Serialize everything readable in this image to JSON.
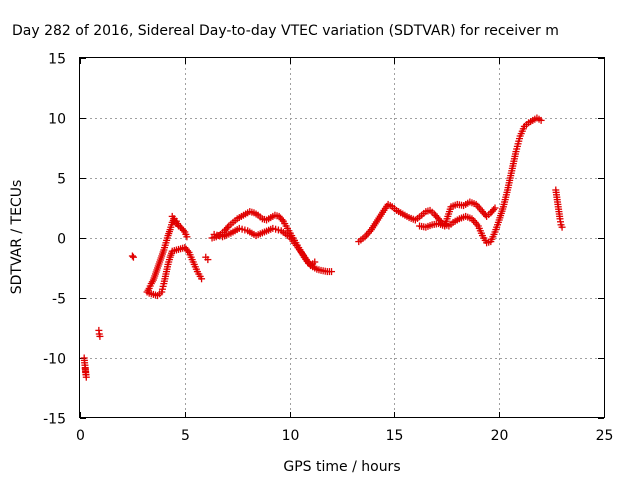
{
  "chart_data": {
    "type": "scatter",
    "title": "Day 282 of 2016, Sidereal Day-to-day VTEC variation (SDTVAR) for receiver m",
    "xlabel": "GPS time / hours",
    "ylabel": "SDTVAR / TECUs",
    "xlim": [
      0,
      25
    ],
    "ylim": [
      -15,
      15
    ],
    "x_ticks": [
      "0",
      "5",
      "10",
      "15",
      "20",
      "25"
    ],
    "y_ticks": [
      "-15",
      "-10",
      "-5",
      "0",
      "5",
      "10",
      "15"
    ],
    "grid": true,
    "marker": "plus",
    "color": "#e00000",
    "segments": [
      [
        [
          0.2,
          -10.0
        ],
        [
          0.22,
          -10.4
        ],
        [
          0.25,
          -10.8
        ],
        [
          0.27,
          -11.2
        ],
        [
          0.3,
          -11.6
        ],
        [
          0.25,
          -10.9
        ]
      ],
      [
        [
          0.9,
          -7.7
        ],
        [
          0.92,
          -8.0
        ],
        [
          0.95,
          -8.2
        ]
      ],
      [
        [
          2.5,
          -1.5
        ],
        [
          2.55,
          -1.6
        ]
      ],
      [
        [
          3.2,
          -4.5
        ],
        [
          3.3,
          -4.2
        ],
        [
          3.4,
          -3.8
        ],
        [
          3.5,
          -3.5
        ],
        [
          3.6,
          -3.0
        ],
        [
          3.7,
          -2.5
        ],
        [
          3.8,
          -2.0
        ],
        [
          3.9,
          -1.5
        ],
        [
          4.0,
          -1.0
        ],
        [
          4.1,
          -0.4
        ],
        [
          4.2,
          0.2
        ],
        [
          4.3,
          0.7
        ],
        [
          4.4,
          1.3
        ],
        [
          4.5,
          1.6
        ],
        [
          4.6,
          1.4
        ],
        [
          4.7,
          1.0
        ]
      ],
      [
        [
          3.3,
          -4.6
        ],
        [
          3.5,
          -4.7
        ],
        [
          3.7,
          -4.8
        ],
        [
          3.9,
          -4.5
        ],
        [
          4.0,
          -3.8
        ],
        [
          4.1,
          -3.0
        ],
        [
          4.2,
          -2.2
        ],
        [
          4.3,
          -1.6
        ],
        [
          4.4,
          -1.1
        ],
        [
          4.6,
          -1.0
        ],
        [
          4.8,
          -0.9
        ],
        [
          5.0,
          -0.8
        ],
        [
          5.2,
          -1.2
        ],
        [
          5.4,
          -2.0
        ],
        [
          5.6,
          -2.8
        ],
        [
          5.8,
          -3.4
        ]
      ],
      [
        [
          4.4,
          1.8
        ],
        [
          4.6,
          1.2
        ],
        [
          4.8,
          0.9
        ],
        [
          5.0,
          0.5
        ],
        [
          5.1,
          0.1
        ]
      ],
      [
        [
          6.0,
          -1.6
        ],
        [
          6.1,
          -1.8
        ]
      ],
      [
        [
          6.3,
          0.0
        ],
        [
          6.5,
          0.1
        ],
        [
          6.7,
          0.3
        ],
        [
          6.9,
          0.6
        ],
        [
          7.1,
          1.0
        ],
        [
          7.3,
          1.3
        ],
        [
          7.5,
          1.6
        ],
        [
          7.7,
          1.8
        ],
        [
          7.9,
          2.0
        ],
        [
          8.1,
          2.2
        ],
        [
          8.3,
          2.1
        ],
        [
          8.5,
          1.9
        ],
        [
          8.7,
          1.6
        ],
        [
          8.9,
          1.5
        ],
        [
          9.1,
          1.7
        ],
        [
          9.3,
          1.9
        ],
        [
          9.5,
          1.8
        ],
        [
          9.7,
          1.4
        ],
        [
          9.9,
          0.8
        ],
        [
          10.1,
          0.2
        ],
        [
          10.3,
          -0.4
        ],
        [
          10.5,
          -1.0
        ],
        [
          10.7,
          -1.6
        ],
        [
          10.9,
          -2.1
        ],
        [
          11.1,
          -2.4
        ],
        [
          11.3,
          -2.6
        ],
        [
          11.5,
          -2.7
        ],
        [
          11.8,
          -2.8
        ],
        [
          12.0,
          -2.8
        ]
      ],
      [
        [
          6.4,
          0.3
        ],
        [
          6.8,
          0.1
        ],
        [
          7.2,
          0.4
        ],
        [
          7.6,
          0.8
        ],
        [
          8.0,
          0.6
        ],
        [
          8.4,
          0.2
        ],
        [
          8.8,
          0.5
        ],
        [
          9.2,
          0.8
        ],
        [
          9.6,
          0.6
        ],
        [
          10.0,
          0.1
        ],
        [
          10.4,
          -0.8
        ],
        [
          10.8,
          -1.8
        ],
        [
          11.0,
          -2.3
        ],
        [
          11.2,
          -2.0
        ]
      ],
      [
        [
          13.3,
          -0.3
        ],
        [
          13.6,
          0.1
        ],
        [
          13.9,
          0.7
        ],
        [
          14.2,
          1.5
        ],
        [
          14.5,
          2.3
        ],
        [
          14.7,
          2.8
        ],
        [
          14.9,
          2.6
        ],
        [
          15.1,
          2.3
        ],
        [
          15.4,
          2.0
        ],
        [
          15.7,
          1.7
        ],
        [
          16.0,
          1.5
        ],
        [
          16.3,
          1.9
        ],
        [
          16.5,
          2.2
        ],
        [
          16.7,
          2.3
        ],
        [
          16.9,
          2.0
        ],
        [
          17.1,
          1.6
        ],
        [
          17.3,
          1.2
        ],
        [
          17.6,
          1.0
        ],
        [
          17.8,
          1.3
        ],
        [
          18.1,
          1.6
        ],
        [
          18.4,
          1.8
        ],
        [
          18.7,
          1.6
        ],
        [
          19.0,
          1.0
        ],
        [
          19.2,
          0.2
        ],
        [
          19.4,
          -0.4
        ],
        [
          19.6,
          -0.3
        ],
        [
          19.8,
          0.5
        ],
        [
          20.0,
          1.5
        ],
        [
          20.2,
          2.6
        ],
        [
          20.4,
          4.0
        ],
        [
          20.6,
          5.6
        ],
        [
          20.8,
          7.2
        ],
        [
          21.0,
          8.5
        ],
        [
          21.2,
          9.3
        ],
        [
          21.4,
          9.6
        ],
        [
          21.6,
          9.8
        ],
        [
          21.8,
          10.0
        ],
        [
          22.0,
          9.8
        ]
      ],
      [
        [
          16.2,
          1.0
        ],
        [
          16.5,
          0.9
        ],
        [
          16.8,
          1.1
        ],
        [
          17.1,
          1.2
        ],
        [
          17.4,
          1.0
        ],
        [
          17.7,
          2.6
        ],
        [
          18.0,
          2.8
        ],
        [
          18.3,
          2.7
        ],
        [
          18.6,
          3.0
        ],
        [
          18.9,
          2.8
        ],
        [
          19.2,
          2.2
        ],
        [
          19.4,
          1.8
        ],
        [
          19.6,
          2.1
        ],
        [
          19.8,
          2.5
        ]
      ],
      [
        [
          22.7,
          4.0
        ],
        [
          22.75,
          3.4
        ],
        [
          22.8,
          2.8
        ],
        [
          22.85,
          2.2
        ],
        [
          22.9,
          1.6
        ],
        [
          22.95,
          1.1
        ],
        [
          23.0,
          0.9
        ]
      ]
    ]
  }
}
